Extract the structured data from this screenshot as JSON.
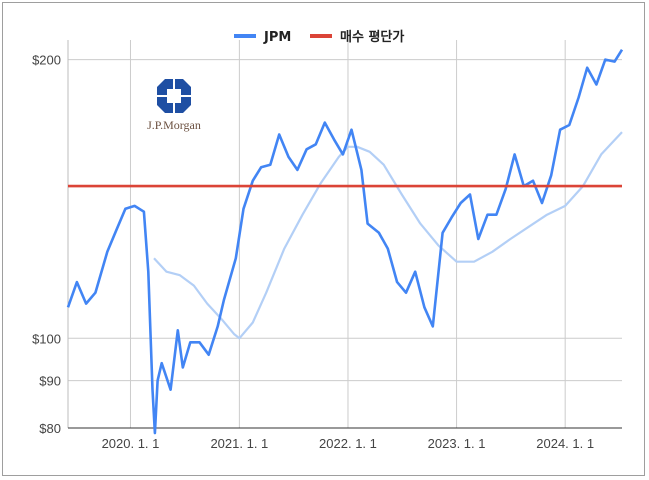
{
  "chart_data": {
    "type": "line",
    "legend_position": "top",
    "grid": true,
    "y_scale": "log",
    "ylim": [
      80,
      210
    ],
    "y_ticks": [
      {
        "value": 200,
        "label": "$200"
      },
      {
        "value": 100,
        "label": "$100"
      },
      {
        "value": 90,
        "label": "$90"
      },
      {
        "value": 80,
        "label": "$80"
      }
    ],
    "xlim": [
      "2019-06-05",
      "2024-07-10"
    ],
    "x_ticks": [
      {
        "date": "2020-01-01",
        "label": "2020. 1. 1"
      },
      {
        "date": "2021-01-01",
        "label": "2021. 1. 1"
      },
      {
        "date": "2022-01-01",
        "label": "2022. 1. 1"
      },
      {
        "date": "2023-01-01",
        "label": "2023. 1. 1"
      },
      {
        "date": "2024-01-01",
        "label": "2024. 1. 1"
      }
    ],
    "series": [
      {
        "name": "JPM",
        "color": "#4285f4",
        "points": [
          [
            "2019-06-05",
            108
          ],
          [
            "2019-07-05",
            115
          ],
          [
            "2019-08-05",
            109
          ],
          [
            "2019-09-05",
            112
          ],
          [
            "2019-10-15",
            124
          ],
          [
            "2019-11-15",
            131
          ],
          [
            "2019-12-15",
            138
          ],
          [
            "2020-01-15",
            139
          ],
          [
            "2020-02-15",
            137
          ],
          [
            "2020-03-01",
            118
          ],
          [
            "2020-03-15",
            88
          ],
          [
            "2020-03-23",
            79
          ],
          [
            "2020-04-01",
            90
          ],
          [
            "2020-04-15",
            94
          ],
          [
            "2020-05-15",
            88
          ],
          [
            "2020-06-08",
            102
          ],
          [
            "2020-06-25",
            93
          ],
          [
            "2020-07-20",
            99
          ],
          [
            "2020-08-20",
            99
          ],
          [
            "2020-09-20",
            96
          ],
          [
            "2020-10-20",
            103
          ],
          [
            "2020-11-10",
            110
          ],
          [
            "2020-12-20",
            122
          ],
          [
            "2021-01-15",
            138
          ],
          [
            "2021-02-15",
            148
          ],
          [
            "2021-03-15",
            153
          ],
          [
            "2021-04-15",
            154
          ],
          [
            "2021-05-15",
            166
          ],
          [
            "2021-06-15",
            157
          ],
          [
            "2021-07-15",
            152
          ],
          [
            "2021-08-15",
            160
          ],
          [
            "2021-09-15",
            162
          ],
          [
            "2021-10-15",
            171
          ],
          [
            "2021-11-15",
            164
          ],
          [
            "2021-12-15",
            158
          ],
          [
            "2022-01-13",
            168
          ],
          [
            "2022-02-15",
            152
          ],
          [
            "2022-03-08",
            133
          ],
          [
            "2022-04-15",
            130
          ],
          [
            "2022-05-15",
            125
          ],
          [
            "2022-06-15",
            115
          ],
          [
            "2022-07-15",
            112
          ],
          [
            "2022-08-15",
            118
          ],
          [
            "2022-09-15",
            108
          ],
          [
            "2022-10-13",
            103
          ],
          [
            "2022-11-15",
            130
          ],
          [
            "2022-12-15",
            135
          ],
          [
            "2023-01-15",
            140
          ],
          [
            "2023-02-15",
            143
          ],
          [
            "2023-03-15",
            128
          ],
          [
            "2023-04-15",
            136
          ],
          [
            "2023-05-15",
            136
          ],
          [
            "2023-06-15",
            145
          ],
          [
            "2023-07-15",
            158
          ],
          [
            "2023-08-15",
            146
          ],
          [
            "2023-09-15",
            148
          ],
          [
            "2023-10-15",
            140
          ],
          [
            "2023-11-15",
            150
          ],
          [
            "2023-12-15",
            168
          ],
          [
            "2024-01-15",
            170
          ],
          [
            "2024-02-15",
            182
          ],
          [
            "2024-03-15",
            196
          ],
          [
            "2024-04-15",
            188
          ],
          [
            "2024-05-15",
            200
          ],
          [
            "2024-06-15",
            199
          ],
          [
            "2024-07-10",
            205
          ]
        ]
      },
      {
        "name": "",
        "color": "#b3cff6",
        "points": [
          [
            "2020-03-20",
            122
          ],
          [
            "2020-05-01",
            118
          ],
          [
            "2020-06-15",
            117
          ],
          [
            "2020-08-01",
            114
          ],
          [
            "2020-09-15",
            109
          ],
          [
            "2020-11-01",
            105
          ],
          [
            "2020-12-15",
            101
          ],
          [
            "2021-01-01",
            100
          ],
          [
            "2021-02-15",
            104
          ],
          [
            "2021-04-01",
            112
          ],
          [
            "2021-06-01",
            125
          ],
          [
            "2021-08-01",
            136
          ],
          [
            "2021-10-01",
            147
          ],
          [
            "2021-12-01",
            157
          ],
          [
            "2022-01-01",
            161
          ],
          [
            "2022-02-01",
            161
          ],
          [
            "2022-03-15",
            159
          ],
          [
            "2022-05-01",
            154
          ],
          [
            "2022-07-01",
            143
          ],
          [
            "2022-09-01",
            133
          ],
          [
            "2022-11-01",
            126
          ],
          [
            "2023-01-01",
            121
          ],
          [
            "2023-03-01",
            121
          ],
          [
            "2023-05-01",
            124
          ],
          [
            "2023-07-01",
            128
          ],
          [
            "2023-09-01",
            132
          ],
          [
            "2023-11-01",
            136
          ],
          [
            "2024-01-01",
            139
          ],
          [
            "2024-03-01",
            146
          ],
          [
            "2024-05-01",
            158
          ],
          [
            "2024-07-10",
            167
          ]
        ]
      },
      {
        "name": "매수 평단가",
        "color": "#db4437",
        "points": [
          [
            "2019-06-05",
            146
          ],
          [
            "2024-07-10",
            146
          ]
        ]
      }
    ]
  },
  "logo": {
    "text": "J.P.Morgan",
    "color": "#1f4fa3"
  }
}
